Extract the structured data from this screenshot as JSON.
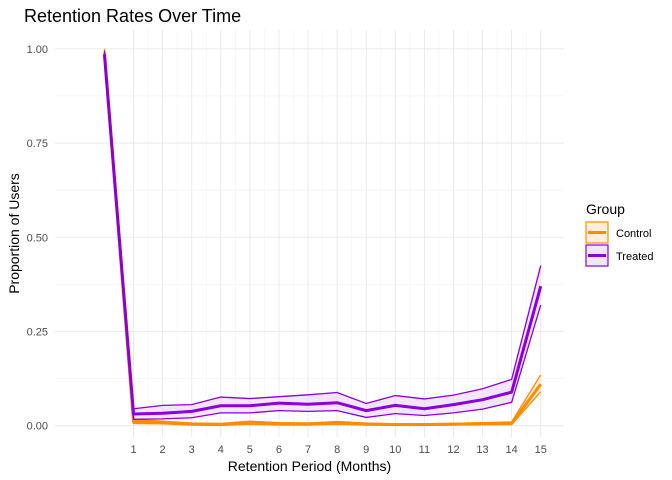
{
  "chart_data": {
    "type": "line",
    "title": "Retention Rates Over Time",
    "xlabel": "Retention Period (Months)",
    "ylabel": "Proportion of Users",
    "xlim": [
      -1.7,
      15.8
    ],
    "ylim": [
      -0.03,
      1.05
    ],
    "xticks": [
      1,
      2,
      3,
      4,
      5,
      6,
      7,
      8,
      9,
      10,
      11,
      12,
      13,
      14,
      15
    ],
    "yticks": [
      0.0,
      0.25,
      0.5,
      0.75,
      1.0
    ],
    "ytick_labels": [
      "0.00",
      "0.25",
      "0.50",
      "0.75",
      "1.00"
    ],
    "grid": true,
    "legend": {
      "title": "Group",
      "position": "right"
    },
    "x": [
      0,
      1,
      2,
      3,
      4,
      5,
      6,
      7,
      8,
      9,
      10,
      11,
      12,
      13,
      14,
      15
    ],
    "series": [
      {
        "name": "Control",
        "color": "#FF8C00",
        "fill": "#FFE4C4",
        "values": [
          0.99,
          0.01,
          0.008,
          0.004,
          0.003,
          0.008,
          0.005,
          0.004,
          0.007,
          0.004,
          0.003,
          0.003,
          0.004,
          0.005,
          0.006,
          0.11
        ],
        "lower": [
          0.98,
          0.006,
          0.005,
          0.002,
          0.001,
          0.004,
          0.002,
          0.002,
          0.004,
          0.002,
          0.001,
          0.001,
          0.002,
          0.003,
          0.003,
          0.09
        ],
        "upper": [
          1.0,
          0.016,
          0.012,
          0.007,
          0.006,
          0.012,
          0.008,
          0.007,
          0.011,
          0.007,
          0.005,
          0.005,
          0.006,
          0.008,
          0.01,
          0.135
        ]
      },
      {
        "name": "Treated",
        "color": "#8B00D9",
        "fill": "#EBD5FA",
        "values": [
          0.985,
          0.031,
          0.033,
          0.038,
          0.053,
          0.053,
          0.06,
          0.057,
          0.061,
          0.04,
          0.054,
          0.045,
          0.056,
          0.069,
          0.089,
          0.37
        ],
        "lower": [
          0.975,
          0.017,
          0.018,
          0.021,
          0.034,
          0.034,
          0.04,
          0.038,
          0.04,
          0.022,
          0.032,
          0.027,
          0.034,
          0.044,
          0.062,
          0.32
        ],
        "upper": [
          0.995,
          0.045,
          0.054,
          0.056,
          0.076,
          0.072,
          0.077,
          0.082,
          0.088,
          0.059,
          0.08,
          0.071,
          0.081,
          0.098,
          0.123,
          0.425
        ]
      }
    ]
  }
}
